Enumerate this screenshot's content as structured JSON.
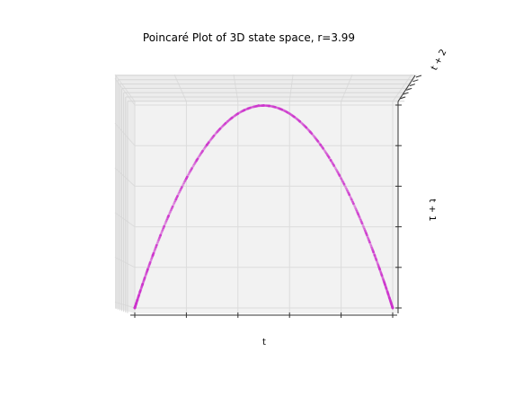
{
  "chart_data": {
    "type": "scatter",
    "projection": "3d",
    "title": "Poincaré Plot of 3D state space, r=3.99",
    "xlabel": "t",
    "ylabel": "t + 1",
    "zlabel": "t + 2",
    "xlim": [
      0,
      1
    ],
    "ylim": [
      0,
      1
    ],
    "grid": true,
    "tick_labels_visible": false,
    "colors": {
      "points": "#cc33cc",
      "pane": "#f2f2f2",
      "grid": "#dcdcdc",
      "axis": "#333333"
    },
    "series": [
      {
        "map": "logistic",
        "r": 3.99,
        "x": [
          0.0,
          0.005,
          0.01,
          0.02,
          0.03,
          0.05,
          0.07,
          0.1,
          0.13,
          0.16,
          0.2,
          0.24,
          0.28,
          0.32,
          0.36,
          0.4,
          0.44,
          0.48,
          0.5,
          0.52,
          0.56,
          0.6,
          0.64,
          0.68,
          0.72,
          0.76,
          0.8,
          0.84,
          0.87,
          0.9,
          0.93,
          0.95,
          0.97,
          0.98,
          0.99,
          0.995,
          1.0
        ],
        "y": [
          0.0,
          0.02,
          0.04,
          0.08,
          0.116,
          0.19,
          0.26,
          0.359,
          0.451,
          0.536,
          0.638,
          0.728,
          0.804,
          0.868,
          0.919,
          0.958,
          0.983,
          0.998,
          0.998,
          0.996,
          0.983,
          0.958,
          0.919,
          0.868,
          0.804,
          0.728,
          0.638,
          0.536,
          0.451,
          0.359,
          0.26,
          0.19,
          0.116,
          0.08,
          0.04,
          0.02,
          0.0
        ]
      }
    ]
  }
}
